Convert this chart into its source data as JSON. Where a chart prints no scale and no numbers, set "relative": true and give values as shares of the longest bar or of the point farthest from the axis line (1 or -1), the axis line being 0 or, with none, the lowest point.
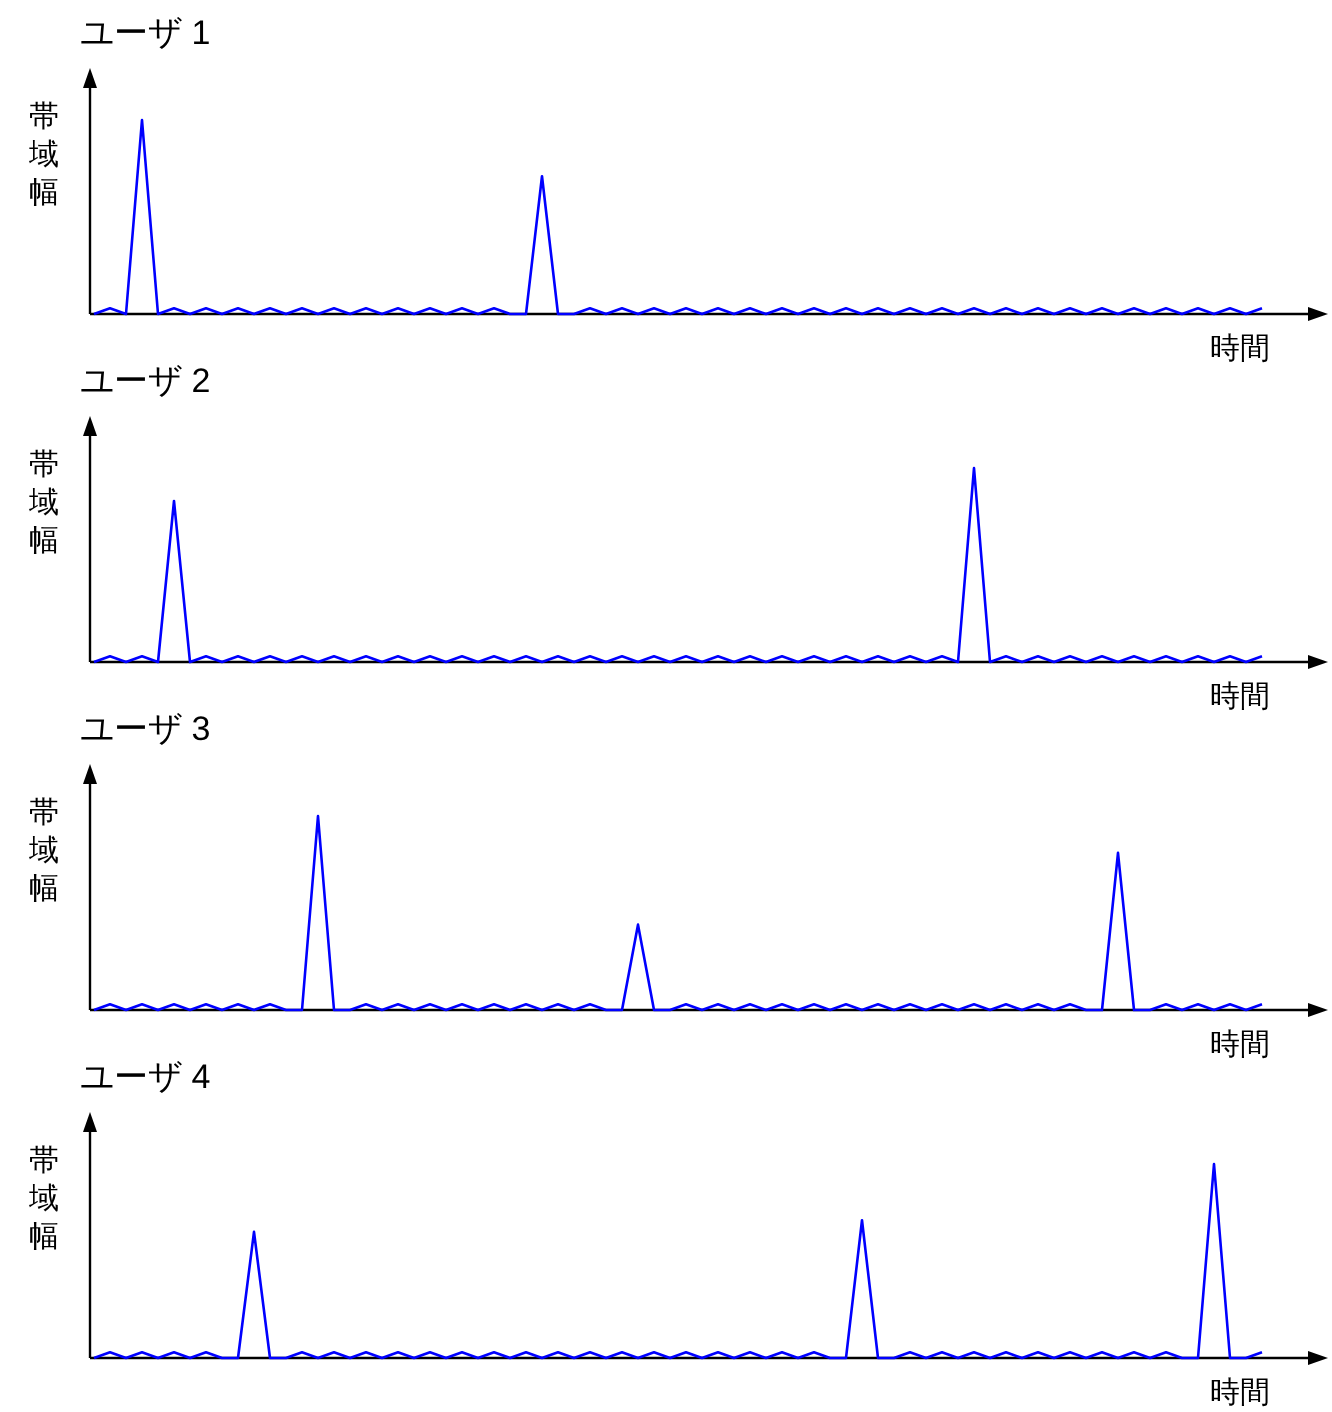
{
  "chart_data": [
    {
      "type": "line",
      "relative": true,
      "title": "ユーザ 1",
      "ylabel": "帯域幅",
      "xlabel": "時間",
      "grid": false,
      "marker": "none",
      "categories": [
        null,
        null,
        null,
        null,
        null,
        null,
        null,
        null,
        null,
        null,
        null,
        null,
        null,
        null,
        null,
        null,
        null,
        null,
        null,
        null,
        null,
        null,
        null,
        null,
        null,
        null,
        null,
        null,
        null,
        null,
        null,
        null,
        null,
        null,
        null,
        null,
        null,
        null,
        null,
        null,
        null,
        null,
        null,
        null,
        null,
        null,
        null,
        null,
        null,
        null,
        null,
        null,
        null,
        null,
        null,
        null,
        null,
        null,
        null,
        null,
        null,
        null,
        null,
        null,
        null,
        null,
        null,
        null,
        null,
        null,
        null,
        null,
        null,
        null
      ],
      "series": [
        {
          "color": "#0000ff",
          "values": [
            0,
            0.03,
            0,
            1,
            0,
            0.03,
            0,
            0.03,
            0,
            0.03,
            0,
            0.03,
            0,
            0.03,
            0,
            0.03,
            0,
            0.03,
            0,
            0.03,
            0,
            0.03,
            0,
            0.03,
            0,
            0.03,
            0,
            0,
            0.71,
            0,
            0,
            0.03,
            0,
            0.03,
            0,
            0.03,
            0,
            0.03,
            0,
            0.03,
            0,
            0.03,
            0,
            0.03,
            0,
            0.03,
            0,
            0.03,
            0,
            0.03,
            0,
            0.03,
            0,
            0.03,
            0,
            0.03,
            0,
            0.03,
            0,
            0.03,
            0,
            0.03,
            0,
            0.03,
            0,
            0.03,
            0,
            0.03,
            0,
            0.03,
            0,
            0.03,
            0,
            0.03
          ]
        }
      ]
    },
    {
      "type": "line",
      "relative": true,
      "title": "ユーザ 2",
      "ylabel": "帯域幅",
      "xlabel": "時間",
      "grid": false,
      "marker": "none",
      "categories": [
        null,
        null,
        null,
        null,
        null,
        null,
        null,
        null,
        null,
        null,
        null,
        null,
        null,
        null,
        null,
        null,
        null,
        null,
        null,
        null,
        null,
        null,
        null,
        null,
        null,
        null,
        null,
        null,
        null,
        null,
        null,
        null,
        null,
        null,
        null,
        null,
        null,
        null,
        null,
        null,
        null,
        null,
        null,
        null,
        null,
        null,
        null,
        null,
        null,
        null,
        null,
        null,
        null,
        null,
        null,
        null,
        null,
        null,
        null,
        null,
        null,
        null,
        null,
        null,
        null,
        null,
        null,
        null,
        null,
        null,
        null,
        null,
        null,
        null
      ],
      "series": [
        {
          "color": "#0000ff",
          "values": [
            0,
            0.03,
            0,
            0.03,
            0,
            0.83,
            0,
            0.03,
            0,
            0.03,
            0,
            0.03,
            0,
            0.03,
            0,
            0.03,
            0,
            0.03,
            0,
            0.03,
            0,
            0.03,
            0,
            0.03,
            0,
            0.03,
            0,
            0.03,
            0,
            0.03,
            0,
            0.03,
            0,
            0.03,
            0,
            0.03,
            0,
            0.03,
            0,
            0.03,
            0,
            0.03,
            0,
            0.03,
            0,
            0.03,
            0,
            0.03,
            0,
            0.03,
            0,
            0.03,
            0,
            0.03,
            0,
            1,
            0,
            0.03,
            0,
            0.03,
            0,
            0.03,
            0,
            0.03,
            0,
            0.03,
            0,
            0.03,
            0,
            0.03,
            0,
            0.03,
            0,
            0.03
          ]
        }
      ]
    },
    {
      "type": "line",
      "relative": true,
      "title": "ユーザ 3",
      "ylabel": "帯域幅",
      "xlabel": "時間",
      "grid": false,
      "marker": "none",
      "categories": [
        null,
        null,
        null,
        null,
        null,
        null,
        null,
        null,
        null,
        null,
        null,
        null,
        null,
        null,
        null,
        null,
        null,
        null,
        null,
        null,
        null,
        null,
        null,
        null,
        null,
        null,
        null,
        null,
        null,
        null,
        null,
        null,
        null,
        null,
        null,
        null,
        null,
        null,
        null,
        null,
        null,
        null,
        null,
        null,
        null,
        null,
        null,
        null,
        null,
        null,
        null,
        null,
        null,
        null,
        null,
        null,
        null,
        null,
        null,
        null,
        null,
        null,
        null,
        null,
        null,
        null,
        null,
        null,
        null,
        null,
        null,
        null,
        null,
        null
      ],
      "series": [
        {
          "color": "#0000ff",
          "values": [
            0,
            0.03,
            0,
            0.03,
            0,
            0.03,
            0,
            0.03,
            0,
            0.03,
            0,
            0.03,
            0,
            0,
            1,
            0,
            0,
            0.03,
            0,
            0.03,
            0,
            0.03,
            0,
            0.03,
            0,
            0.03,
            0,
            0.03,
            0,
            0.03,
            0,
            0.03,
            0,
            0,
            0.44,
            0,
            0,
            0.03,
            0,
            0.03,
            0,
            0.03,
            0,
            0.03,
            0,
            0.03,
            0,
            0.03,
            0,
            0.03,
            0,
            0.03,
            0,
            0.03,
            0,
            0.03,
            0,
            0.03,
            0,
            0.03,
            0,
            0.03,
            0,
            0,
            0.81,
            0,
            0,
            0.03,
            0,
            0.03,
            0,
            0.03,
            0,
            0.03
          ]
        }
      ]
    },
    {
      "type": "line",
      "relative": true,
      "title": "ユーザ 4",
      "ylabel": "帯域幅",
      "xlabel": "時間",
      "grid": false,
      "marker": "none",
      "categories": [
        null,
        null,
        null,
        null,
        null,
        null,
        null,
        null,
        null,
        null,
        null,
        null,
        null,
        null,
        null,
        null,
        null,
        null,
        null,
        null,
        null,
        null,
        null,
        null,
        null,
        null,
        null,
        null,
        null,
        null,
        null,
        null,
        null,
        null,
        null,
        null,
        null,
        null,
        null,
        null,
        null,
        null,
        null,
        null,
        null,
        null,
        null,
        null,
        null,
        null,
        null,
        null,
        null,
        null,
        null,
        null,
        null,
        null,
        null,
        null,
        null,
        null,
        null,
        null,
        null,
        null,
        null,
        null,
        null,
        null,
        null,
        null,
        null,
        null
      ],
      "series": [
        {
          "color": "#0000ff",
          "values": [
            0,
            0.03,
            0,
            0.03,
            0,
            0.03,
            0,
            0.03,
            0,
            0,
            0.65,
            0,
            0,
            0.03,
            0,
            0.03,
            0,
            0.03,
            0,
            0.03,
            0,
            0.03,
            0,
            0.03,
            0,
            0.03,
            0,
            0.03,
            0,
            0.03,
            0,
            0.03,
            0,
            0.03,
            0,
            0.03,
            0,
            0.03,
            0,
            0.03,
            0,
            0.03,
            0,
            0.03,
            0,
            0.03,
            0,
            0,
            0.71,
            0,
            0,
            0.03,
            0,
            0.03,
            0,
            0.03,
            0,
            0.03,
            0,
            0.03,
            0,
            0.03,
            0,
            0.03,
            0,
            0.03,
            0,
            0.03,
            0,
            0,
            1,
            0,
            0,
            0.03
          ]
        }
      ]
    }
  ]
}
